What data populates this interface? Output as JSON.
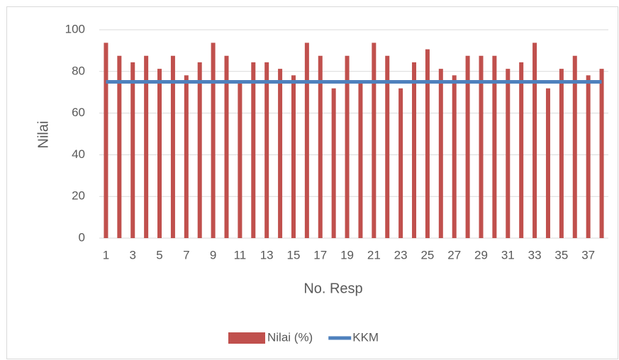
{
  "chart_data": {
    "type": "bar",
    "x_label": "No. Resp",
    "y_label": "Nilai",
    "categories": [
      "1",
      null,
      "3",
      null,
      "5",
      null,
      "7",
      null,
      "9",
      null,
      "11",
      null,
      "13",
      null,
      "15",
      null,
      "17",
      null,
      "19",
      null,
      "21",
      null,
      "23",
      null,
      "25",
      null,
      "27",
      null,
      "29",
      null,
      "31",
      null,
      "33",
      null,
      "35",
      null,
      "37",
      null
    ],
    "series": [
      {
        "name": "Nilai (%)",
        "type": "bar",
        "color": "#c0504d",
        "values": [
          93.75,
          87.5,
          84.38,
          87.5,
          81.25,
          87.5,
          78.13,
          84.38,
          93.75,
          87.5,
          75,
          84.38,
          84.38,
          81.25,
          78.13,
          93.75,
          87.5,
          71.88,
          87.5,
          75,
          93.75,
          87.5,
          71.88,
          84.38,
          90.63,
          81.25,
          78.13,
          87.5,
          87.5,
          87.5,
          81.25,
          84.38,
          93.75,
          71.88,
          81.25,
          87.5,
          78.13,
          81.25
        ]
      },
      {
        "name": "KKM",
        "type": "line",
        "color": "#4f81bd",
        "values": [
          75,
          75,
          75,
          75,
          75,
          75,
          75,
          75,
          75,
          75,
          75,
          75,
          75,
          75,
          75,
          75,
          75,
          75,
          75,
          75,
          75,
          75,
          75,
          75,
          75,
          75,
          75,
          75,
          75,
          75,
          75,
          75,
          75,
          75,
          75,
          75,
          75,
          75
        ]
      }
    ],
    "ylim": [
      0,
      100
    ],
    "yticks": [
      0,
      20,
      40,
      60,
      80,
      100
    ],
    "grid": true,
    "legend": "bottom"
  }
}
